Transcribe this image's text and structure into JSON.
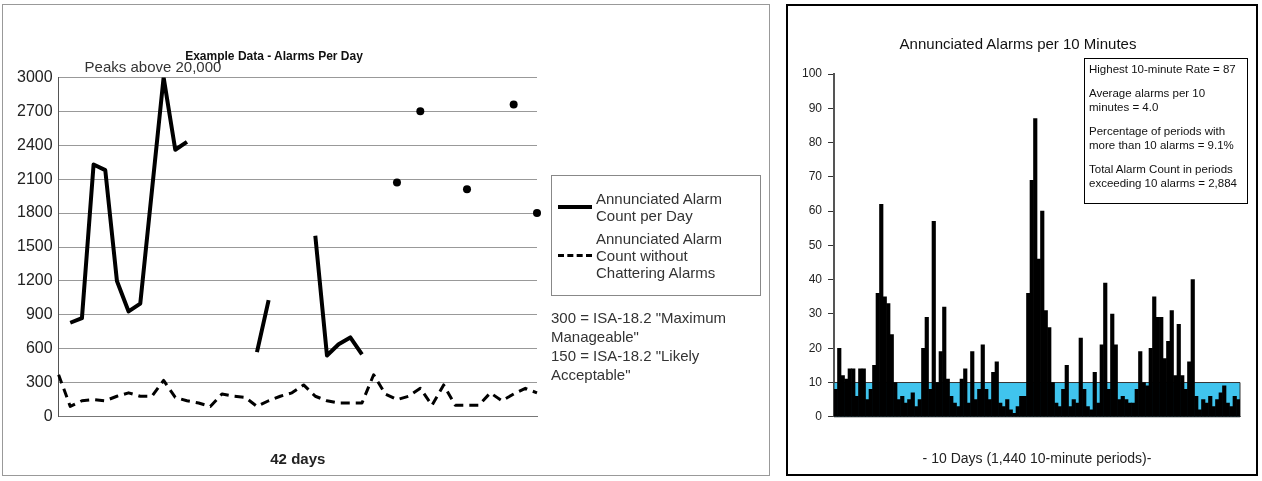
{
  "chart_data": [
    {
      "type": "line",
      "title": "Example Data - Alarms Per Day",
      "xlabel": "42 days",
      "categories": [
        null,
        null,
        null,
        null,
        null,
        null,
        null,
        null,
        null,
        null,
        null,
        null,
        null,
        null,
        null,
        null,
        null,
        null,
        null,
        null,
        null,
        null,
        null,
        null,
        null,
        null,
        null,
        null,
        null,
        null,
        null,
        null,
        null,
        null,
        null,
        null,
        null,
        null,
        null,
        null,
        null,
        null
      ],
      "series": [
        {
          "name": "Annunciated Alarm Count per Day",
          "color": "#000000",
          "line_style": "solid",
          "values": [
            null,
            830,
            870,
            2230,
            2180,
            1200,
            930,
            1000,
            2000,
            3000,
            2360,
            2430,
            null,
            null,
            null,
            null,
            null,
            570,
            1030,
            null,
            null,
            null,
            1600,
            540,
            640,
            700,
            550,
            null,
            null,
            2070,
            null,
            2700,
            null,
            null,
            null,
            2010,
            null,
            null,
            null,
            2760,
            null,
            1800
          ]
        },
        {
          "name": "Annunciated Alarm Count without Chattering Alarms",
          "color": "#000000",
          "line_style": "dashed",
          "values": [
            370,
            90,
            140,
            150,
            140,
            180,
            210,
            180,
            180,
            320,
            170,
            140,
            120,
            90,
            200,
            180,
            170,
            90,
            140,
            180,
            210,
            280,
            180,
            140,
            120,
            120,
            120,
            370,
            200,
            150,
            180,
            250,
            100,
            280,
            100,
            100,
            100,
            210,
            140,
            200,
            250,
            210
          ]
        }
      ],
      "ylim": [
        0,
        3000
      ],
      "yticks": [
        0,
        300,
        600,
        900,
        1200,
        1500,
        1800,
        2100,
        2400,
        2700,
        3000
      ],
      "grid": "y",
      "legend": "right",
      "marker": "none",
      "annotations": [
        "Peaks above 20,000",
        "300 = ISA-18.2 \"Maximum Manageable\"",
        "150 = ISA-18.2 \"Likely Acceptable\""
      ]
    },
    {
      "type": "bar",
      "title": "Annunciated Alarms per 10 Minutes",
      "xlabel": "- 10 Days (1,440 10-minute periods)-",
      "categories": [
        null,
        null,
        null,
        null,
        null,
        null,
        null,
        null,
        null,
        null,
        null,
        null,
        null,
        null,
        null,
        null,
        null,
        null,
        null,
        null,
        null,
        null,
        null,
        null,
        null,
        null,
        null,
        null,
        null,
        null,
        null,
        null,
        null,
        null,
        null,
        null,
        null,
        null,
        null,
        null,
        null,
        null,
        null,
        null,
        null,
        null,
        null,
        null,
        null,
        null,
        null,
        null,
        null,
        null,
        null,
        null,
        null,
        null,
        null,
        null,
        null,
        null,
        null,
        null,
        null,
        null,
        null,
        null,
        null,
        null,
        null,
        null,
        null,
        null,
        null,
        null,
        null,
        null,
        null,
        null,
        null,
        null,
        null,
        null,
        null,
        null,
        null,
        null,
        null,
        null,
        null,
        null,
        null,
        null,
        null,
        null,
        null,
        null,
        null,
        null,
        null,
        null,
        null,
        null,
        null,
        null,
        null,
        null,
        null,
        null,
        null,
        null,
        null,
        null,
        null,
        null
      ],
      "values": [
        8,
        20,
        12,
        11,
        14,
        14,
        6,
        14,
        14,
        5,
        8,
        15,
        36,
        62,
        35,
        33,
        24,
        10,
        5,
        6,
        4,
        5,
        7,
        3,
        5,
        20,
        29,
        8,
        57,
        10,
        19,
        32,
        11,
        6,
        4,
        3,
        11,
        14,
        4,
        19,
        5,
        8,
        21,
        8,
        5,
        13,
        16,
        4,
        3,
        5,
        2,
        1,
        3,
        6,
        6,
        36,
        69,
        87,
        46,
        60,
        31,
        26,
        10,
        4,
        3,
        8,
        15,
        3,
        5,
        4,
        23,
        8,
        3,
        2,
        13,
        4,
        21,
        39,
        8,
        30,
        21,
        5,
        6,
        5,
        4,
        4,
        8,
        19,
        10,
        9,
        20,
        35,
        29,
        29,
        17,
        22,
        31,
        12,
        27,
        12,
        8,
        16,
        40,
        6,
        2,
        5,
        4,
        6,
        3,
        5,
        7,
        9,
        4,
        3,
        6,
        5
      ],
      "color": "#000000",
      "ylim": [
        0,
        100
      ],
      "yticks": [
        0,
        10,
        20,
        30,
        40,
        50,
        60,
        70,
        80,
        90,
        100
      ],
      "bands": [
        {
          "axis": "y",
          "from": 0,
          "to": 10,
          "color": "#40c4ee"
        }
      ],
      "annotations": [
        "Highest 10-minute Rate = 87",
        "Average alarms per 10 minutes = 4.0",
        "Percentage of periods with more than 10 alarms = 9.1%",
        "Total Alarm Count in periods exceeding 10 alarms = 2,884"
      ]
    }
  ]
}
